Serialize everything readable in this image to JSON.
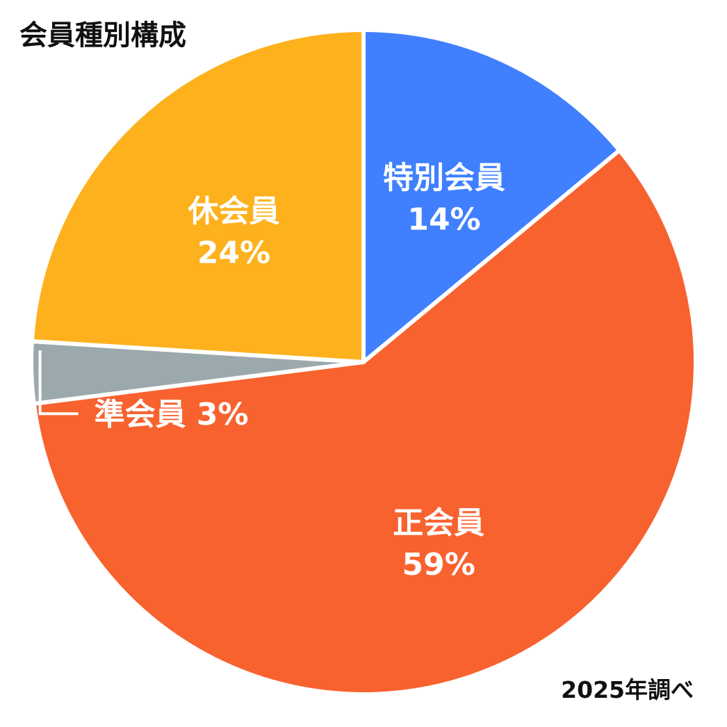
{
  "chart_data": {
    "type": "pie",
    "title": "会員種別構成",
    "note": "2025年調べ",
    "start_angle_deg": 0,
    "direction": "clockwise",
    "slices": [
      {
        "label": "特別会員",
        "value": 14,
        "value_label": "14%",
        "color": "#4080FF"
      },
      {
        "label": "正会員",
        "value": 59,
        "value_label": "59%",
        "color": "#F8622F"
      },
      {
        "label": "準会員",
        "value": 3,
        "value_label": "3%",
        "color": "#9BA9AD",
        "callout_text": "準会員 3%"
      },
      {
        "label": "休会員",
        "value": 24,
        "value_label": "24%",
        "color": "#FDB11D"
      }
    ],
    "legend": "none",
    "slice_separator_color": "#FFFFFF"
  }
}
